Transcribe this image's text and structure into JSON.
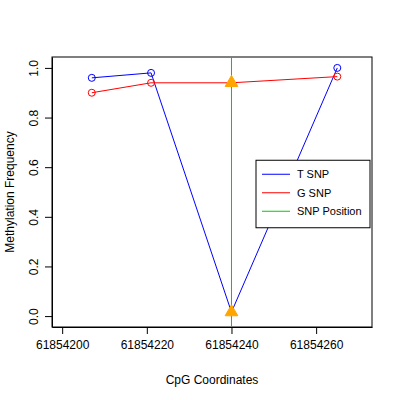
{
  "chart_data": {
    "type": "line",
    "x_label": "CpG Coordinates",
    "y_label": "Methylation Frequency",
    "x": [
      61854207,
      61854221,
      61854240,
      61854265
    ],
    "series": [
      {
        "name": "T SNP",
        "color": "#0000ff",
        "marker": "circle",
        "values": [
          0.96,
          0.98,
          0.016,
          1.0
        ]
      },
      {
        "name": "G SNP",
        "color": "#ff0000",
        "marker": "circle",
        "values": [
          0.9,
          0.94,
          0.94,
          0.965
        ]
      },
      {
        "name": "SNP Position",
        "color": "#00cc00",
        "type": "vline",
        "x": [
          61854240
        ]
      }
    ],
    "xlim": [
      61854197.6,
      61854273.2
    ],
    "xticks": [
      61854200,
      61854220,
      61854240,
      61854260
    ],
    "ylim": [
      -0.044,
      1.044
    ],
    "yticks": [
      {
        "value": 0,
        "label": "0.0"
      },
      0.2,
      0.4,
      0.6,
      0.8,
      {
        "value": 1,
        "label": "1.0"
      }
    ],
    "legend": "right",
    "grid": false
  }
}
